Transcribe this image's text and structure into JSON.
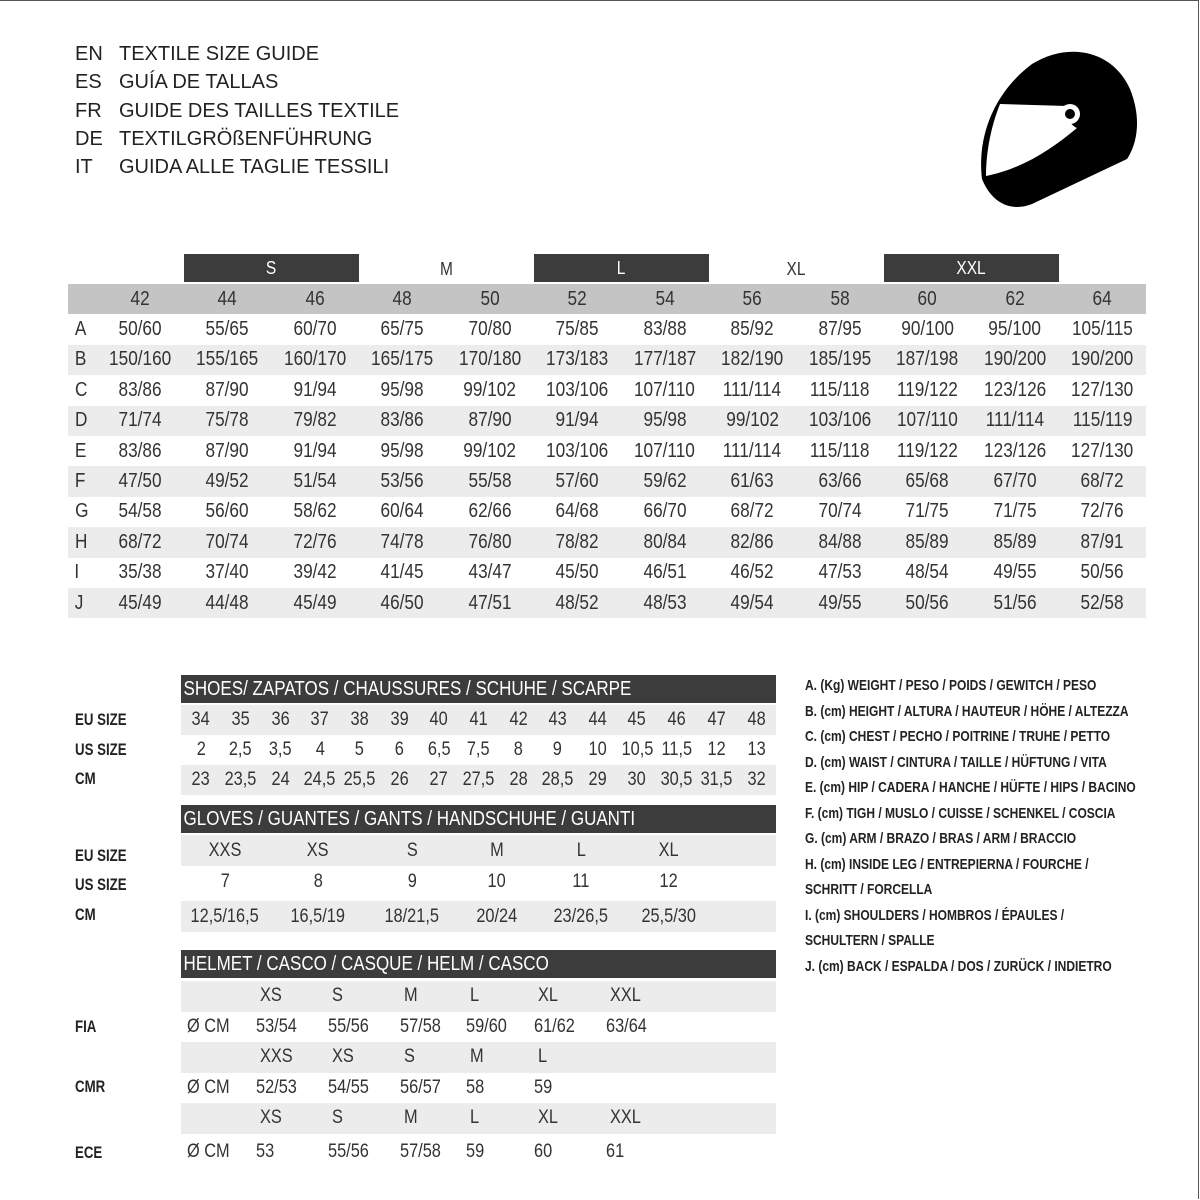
{
  "titles": [
    {
      "code": "EN",
      "text": "TEXTILE SIZE GUIDE"
    },
    {
      "code": "ES",
      "text": "GUÍA DE TALLAS"
    },
    {
      "code": "FR",
      "text": "GUIDE DES TAILLES TEXTILE"
    },
    {
      "code": "DE",
      "text": "TEXTILGRÖßENFÜHRUNG"
    },
    {
      "code": "IT",
      "text": "GUIDA ALLE TAGLIE TESSILI"
    }
  ],
  "icon": "helmet-icon",
  "textile": {
    "size_groups": [
      {
        "label": "S",
        "dark": true
      },
      {
        "label": "M",
        "dark": false
      },
      {
        "label": "L",
        "dark": true
      },
      {
        "label": "XL",
        "dark": false
      },
      {
        "label": "XXL",
        "dark": true
      }
    ],
    "numbers": [
      "42",
      "44",
      "46",
      "48",
      "50",
      "52",
      "54",
      "56",
      "58",
      "60",
      "62",
      "64"
    ],
    "rows": [
      {
        "label": "A",
        "values": [
          "50/60",
          "55/65",
          "60/70",
          "65/75",
          "70/80",
          "75/85",
          "83/88",
          "85/92",
          "87/95",
          "90/100",
          "95/100",
          "105/115"
        ]
      },
      {
        "label": "B",
        "values": [
          "150/160",
          "155/165",
          "160/170",
          "165/175",
          "170/180",
          "173/183",
          "177/187",
          "182/190",
          "185/195",
          "187/198",
          "190/200",
          "190/200"
        ]
      },
      {
        "label": "C",
        "values": [
          "83/86",
          "87/90",
          "91/94",
          "95/98",
          "99/102",
          "103/106",
          "107/110",
          "111/114",
          "115/118",
          "119/122",
          "123/126",
          "127/130"
        ]
      },
      {
        "label": "D",
        "values": [
          "71/74",
          "75/78",
          "79/82",
          "83/86",
          "87/90",
          "91/94",
          "95/98",
          "99/102",
          "103/106",
          "107/110",
          "111/114",
          "115/119"
        ]
      },
      {
        "label": "E",
        "values": [
          "83/86",
          "87/90",
          "91/94",
          "95/98",
          "99/102",
          "103/106",
          "107/110",
          "111/114",
          "115/118",
          "119/122",
          "123/126",
          "127/130"
        ]
      },
      {
        "label": "F",
        "values": [
          "47/50",
          "49/52",
          "51/54",
          "53/56",
          "55/58",
          "57/60",
          "59/62",
          "61/63",
          "63/66",
          "65/68",
          "67/70",
          "68/72"
        ]
      },
      {
        "label": "G",
        "values": [
          "54/58",
          "56/60",
          "58/62",
          "60/64",
          "62/66",
          "64/68",
          "66/70",
          "68/72",
          "70/74",
          "71/75",
          "71/75",
          "72/76"
        ]
      },
      {
        "label": "H",
        "values": [
          "68/72",
          "70/74",
          "72/76",
          "74/78",
          "76/80",
          "78/82",
          "80/84",
          "82/86",
          "84/88",
          "85/89",
          "85/89",
          "87/91"
        ]
      },
      {
        "label": "I",
        "values": [
          "35/38",
          "37/40",
          "39/42",
          "41/45",
          "43/47",
          "45/50",
          "46/51",
          "46/52",
          "47/53",
          "48/54",
          "49/55",
          "50/56"
        ]
      },
      {
        "label": "J",
        "values": [
          "45/49",
          "44/48",
          "45/49",
          "46/50",
          "47/51",
          "48/52",
          "48/53",
          "49/54",
          "49/55",
          "50/56",
          "51/56",
          "52/58"
        ]
      }
    ]
  },
  "shoes": {
    "title": "SHOES/ ZAPATOS / CHAUSSURES / SCHUHE / SCARPE",
    "rows": [
      {
        "label": "EU SIZE",
        "values": [
          "34",
          "35",
          "36",
          "37",
          "38",
          "39",
          "40",
          "41",
          "42",
          "43",
          "44",
          "45",
          "46",
          "47",
          "48"
        ]
      },
      {
        "label": "US SIZE",
        "values": [
          "2",
          "2,5",
          "3,5",
          "4",
          "5",
          "6",
          "6,5",
          "7,5",
          "8",
          "9",
          "10",
          "10,5",
          "11,5",
          "12",
          "13"
        ]
      },
      {
        "label": "CM",
        "values": [
          "23",
          "23,5",
          "24",
          "24,5",
          "25,5",
          "26",
          "27",
          "27,5",
          "28",
          "28,5",
          "29",
          "30",
          "30,5",
          "31,5",
          "32"
        ]
      }
    ]
  },
  "gloves": {
    "title": "GLOVES / GUANTES / GANTS / HANDSCHUHE / GUANTI",
    "rows": [
      {
        "label": "EU SIZE",
        "values": [
          "XXS",
          "XS",
          "S",
          "M",
          "L",
          "XL"
        ]
      },
      {
        "label": "US SIZE",
        "values": [
          "7",
          "8",
          "9",
          "10",
          "11",
          "12"
        ]
      },
      {
        "label": "CM",
        "values": [
          "12,5/16,5",
          "16,5/19",
          "18/21,5",
          "20/24",
          "23/26,5",
          "25,5/30"
        ]
      }
    ]
  },
  "helmet": {
    "title": "HELMET / CASCO / CASQUE / HELM / CASCO",
    "unit": "Ø CM",
    "standards": [
      {
        "label": "FIA",
        "sizes": [
          "XS",
          "S",
          "M",
          "L",
          "XL",
          "XXL"
        ],
        "values": [
          "53/54",
          "55/56",
          "57/58",
          "59/60",
          "61/62",
          "63/64"
        ]
      },
      {
        "label": "CMR",
        "sizes": [
          "XXS",
          "XS",
          "S",
          "M",
          "L",
          ""
        ],
        "values": [
          "52/53",
          "54/55",
          "56/57",
          "58",
          "59",
          ""
        ]
      },
      {
        "label": "ECE",
        "sizes": [
          "XS",
          "S",
          "M",
          "L",
          "XL",
          "XXL"
        ],
        "values": [
          "53",
          "55/56",
          "57/58",
          "59",
          "60",
          "61"
        ]
      }
    ]
  },
  "legend": [
    "A. (Kg) WEIGHT / PESO / POIDS / GEWITCH / PESO",
    "B. (cm) HEIGHT / ALTURA / HAUTEUR / HÖHE / ALTEZZA",
    "C. (cm) CHEST / PECHO / POITRINE / TRUHE / PETTO",
    "D. (cm) WAIST / CINTURA / TAILLE / HÜFTUNG / VITA",
    "E. (cm) HIP / CADERA / HANCHE / HÜFTE / HIPS /  BACINO",
    "F.  (cm) TIGH / MUSLO / CUISSE / SCHENKEL / COSCIA",
    "G. (cm) ARM  / BRAZO / BRAS / ARM / BRACCIO",
    "H. (cm) INSIDE LEG / ENTREPIERNA / FOURCHE /",
    "SCHRITT / FORCELLA",
    "I.  (cm) SHOULDERS / HOMBROS / ÉPAULES /",
    "SCHULTERN / SPALLE",
    "J. (cm) BACK / ESPALDA / DOS / ZURÜCK / INDIETRO"
  ],
  "colors": {
    "header_dark": "#3c3c3c",
    "number_row": "#c4c4c4",
    "stripe": "#ececec"
  }
}
